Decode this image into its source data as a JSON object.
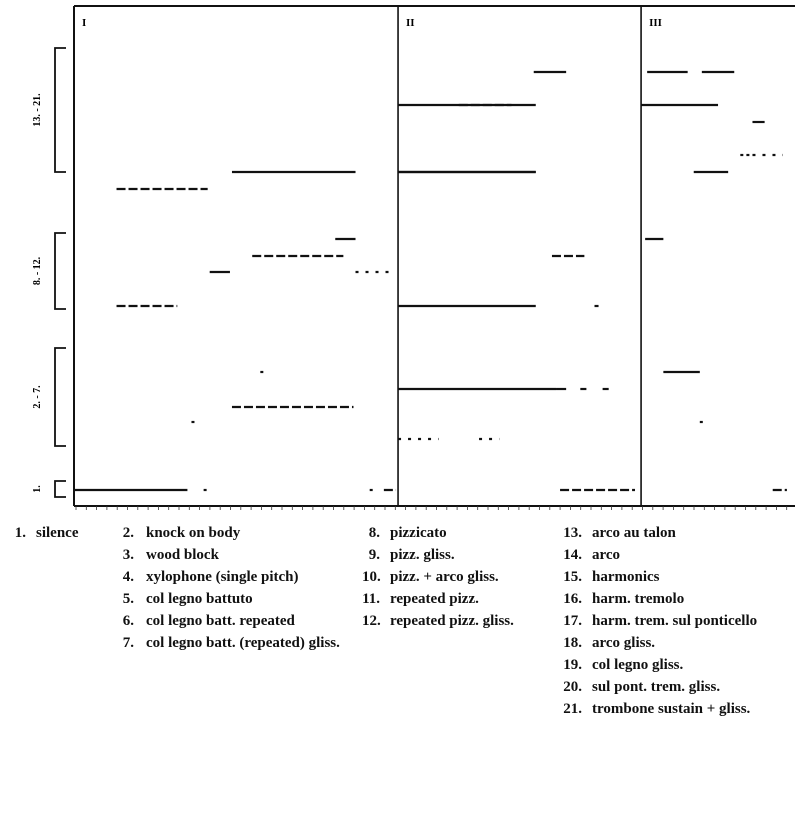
{
  "chart_data": {
    "type": "timeline",
    "sections": [
      "I",
      "II",
      "III"
    ],
    "groups": [
      {
        "label": "13. - 21.",
        "from": 13,
        "to": 21
      },
      {
        "label": "8. - 12.",
        "from": 8,
        "to": 12
      },
      {
        "label": "2. - 7.",
        "from": 2,
        "to": 7
      },
      {
        "label": "1.",
        "from": 1,
        "to": 1
      }
    ],
    "legend": [
      {
        "num": "1.",
        "label": "silence"
      },
      {
        "num": "2.",
        "label": "knock on body"
      },
      {
        "num": "3.",
        "label": "wood block"
      },
      {
        "num": "4.",
        "label": "xylophone (single pitch)"
      },
      {
        "num": "5.",
        "label": "col legno battuto"
      },
      {
        "num": "6.",
        "label": "col legno batt. repeated"
      },
      {
        "num": "7.",
        "label": "col legno batt. (repeated) gliss."
      },
      {
        "num": "8.",
        "label": "pizzicato"
      },
      {
        "num": "9.",
        "label": "pizz. gliss."
      },
      {
        "num": "10.",
        "label": "pizz. + arco gliss."
      },
      {
        "num": "11.",
        "label": "repeated pizz."
      },
      {
        "num": "12.",
        "label": "repeated pizz. gliss."
      },
      {
        "num": "13.",
        "label": "arco au talon"
      },
      {
        "num": "14.",
        "label": "arco"
      },
      {
        "num": "15.",
        "label": "harmonics"
      },
      {
        "num": "16.",
        "label": "harm. tremolo"
      },
      {
        "num": "17.",
        "label": "harm. trem. sul ponticello"
      },
      {
        "num": "18.",
        "label": "arco gliss."
      },
      {
        "num": "19.",
        "label": "col legno gliss."
      },
      {
        "num": "20.",
        "label": "sul pont. trem. gliss."
      },
      {
        "num": "21.",
        "label": "trombone sustain + gliss."
      }
    ],
    "segments": [
      {
        "section": "I",
        "category": 1,
        "start": 0,
        "end": 5.6,
        "style": "solid"
      },
      {
        "section": "I",
        "category": 2,
        "start": 5.8,
        "end": 5.9,
        "style": "dot"
      },
      {
        "section": "I",
        "category": 4,
        "start": 7.8,
        "end": 13.8,
        "style": "dashed"
      },
      {
        "section": "I",
        "category": 5,
        "start": 9.2,
        "end": 9.3,
        "style": "dot"
      },
      {
        "section": "I",
        "category": 1,
        "start": 6.4,
        "end": 6.5,
        "style": "dot"
      },
      {
        "section": "I",
        "category": 1,
        "start": 14.6,
        "end": 14.7,
        "style": "dot"
      },
      {
        "section": "I",
        "category": 1,
        "start": 15.3,
        "end": 15.9,
        "style": "dashed"
      },
      {
        "section": "I",
        "category": 8,
        "start": 2.1,
        "end": 5.1,
        "style": "dashed"
      },
      {
        "section": "I",
        "category": 10,
        "start": 6.7,
        "end": 7.7,
        "style": "solid"
      },
      {
        "section": "I",
        "category": 11,
        "start": 8.8,
        "end": 13.3,
        "style": "dashed"
      },
      {
        "section": "I",
        "category": 12,
        "start": 12.9,
        "end": 13.9,
        "style": "solid"
      },
      {
        "section": "I",
        "category": 10,
        "start": 13.9,
        "end": 15.6,
        "style": "dotted"
      },
      {
        "section": "I",
        "category": 13,
        "start": 2.1,
        "end": 6.6,
        "style": "dashed"
      },
      {
        "section": "I",
        "category": 14,
        "start": 7.8,
        "end": 13.9,
        "style": "solid"
      },
      {
        "section": "II",
        "category": 7,
        "start": 16.0,
        "end": 18.0,
        "style": "dotted"
      },
      {
        "section": "II",
        "category": 7,
        "start": 20.0,
        "end": 21.0,
        "style": "dotted"
      },
      {
        "section": "II",
        "category": 6,
        "start": 16.0,
        "end": 23.8,
        "style": "solid"
      },
      {
        "section": "II",
        "category": 6,
        "start": 23.8,
        "end": 24.3,
        "style": "solid"
      },
      {
        "section": "II",
        "category": 6,
        "start": 25.0,
        "end": 25.3,
        "style": "dot"
      },
      {
        "section": "II",
        "category": 6,
        "start": 26.1,
        "end": 26.4,
        "style": "dot"
      },
      {
        "section": "II",
        "category": 1,
        "start": 24.0,
        "end": 27.7,
        "style": "dashed"
      },
      {
        "section": "II",
        "category": 8,
        "start": 16.0,
        "end": 22.8,
        "style": "solid"
      },
      {
        "section": "II",
        "category": 8,
        "start": 25.7,
        "end": 25.9,
        "style": "dot"
      },
      {
        "section": "II",
        "category": 11,
        "start": 23.6,
        "end": 25.2,
        "style": "dashed"
      },
      {
        "section": "II",
        "category": 14,
        "start": 16.0,
        "end": 22.8,
        "style": "solid"
      },
      {
        "section": "II",
        "category": 14,
        "start": 16.0,
        "end": 22.8,
        "style": "solid"
      },
      {
        "section": "II",
        "category": 18,
        "start": 16.0,
        "end": 22.8,
        "style": "solid"
      },
      {
        "section": "II",
        "category": 19,
        "start": 19.0,
        "end": 21.6,
        "style": "dashed"
      },
      {
        "section": "II",
        "category": 21,
        "start": 22.7,
        "end": 24.3,
        "style": "solid"
      },
      {
        "section": "III",
        "category": 21,
        "start": 28.3,
        "end": 30.3,
        "style": "solid"
      },
      {
        "section": "III",
        "category": 21,
        "start": 31.0,
        "end": 32.6,
        "style": "solid"
      },
      {
        "section": "III",
        "category": 18,
        "start": 28.0,
        "end": 31.8,
        "style": "solid"
      },
      {
        "section": "III",
        "category": 16,
        "start": 33.5,
        "end": 34.1,
        "style": "solid"
      },
      {
        "section": "III",
        "category": 15,
        "start": 33.2,
        "end": 33.3,
        "style": "dot"
      },
      {
        "section": "III",
        "category": 15,
        "start": 32.9,
        "end": 33.0,
        "style": "dot"
      },
      {
        "section": "III",
        "category": 15,
        "start": 33.5,
        "end": 35.0,
        "style": "dotted"
      },
      {
        "section": "III",
        "category": 14,
        "start": 30.6,
        "end": 32.3,
        "style": "solid"
      },
      {
        "section": "III",
        "category": 12,
        "start": 28.2,
        "end": 29.1,
        "style": "solid"
      },
      {
        "section": "III",
        "category": 5,
        "start": 29.1,
        "end": 30.9,
        "style": "solid"
      },
      {
        "section": "III",
        "category": 2,
        "start": 30.9,
        "end": 31.0,
        "style": "dot"
      },
      {
        "section": "III",
        "category": 1,
        "start": 34.5,
        "end": 35.2,
        "style": "dashed"
      }
    ]
  }
}
